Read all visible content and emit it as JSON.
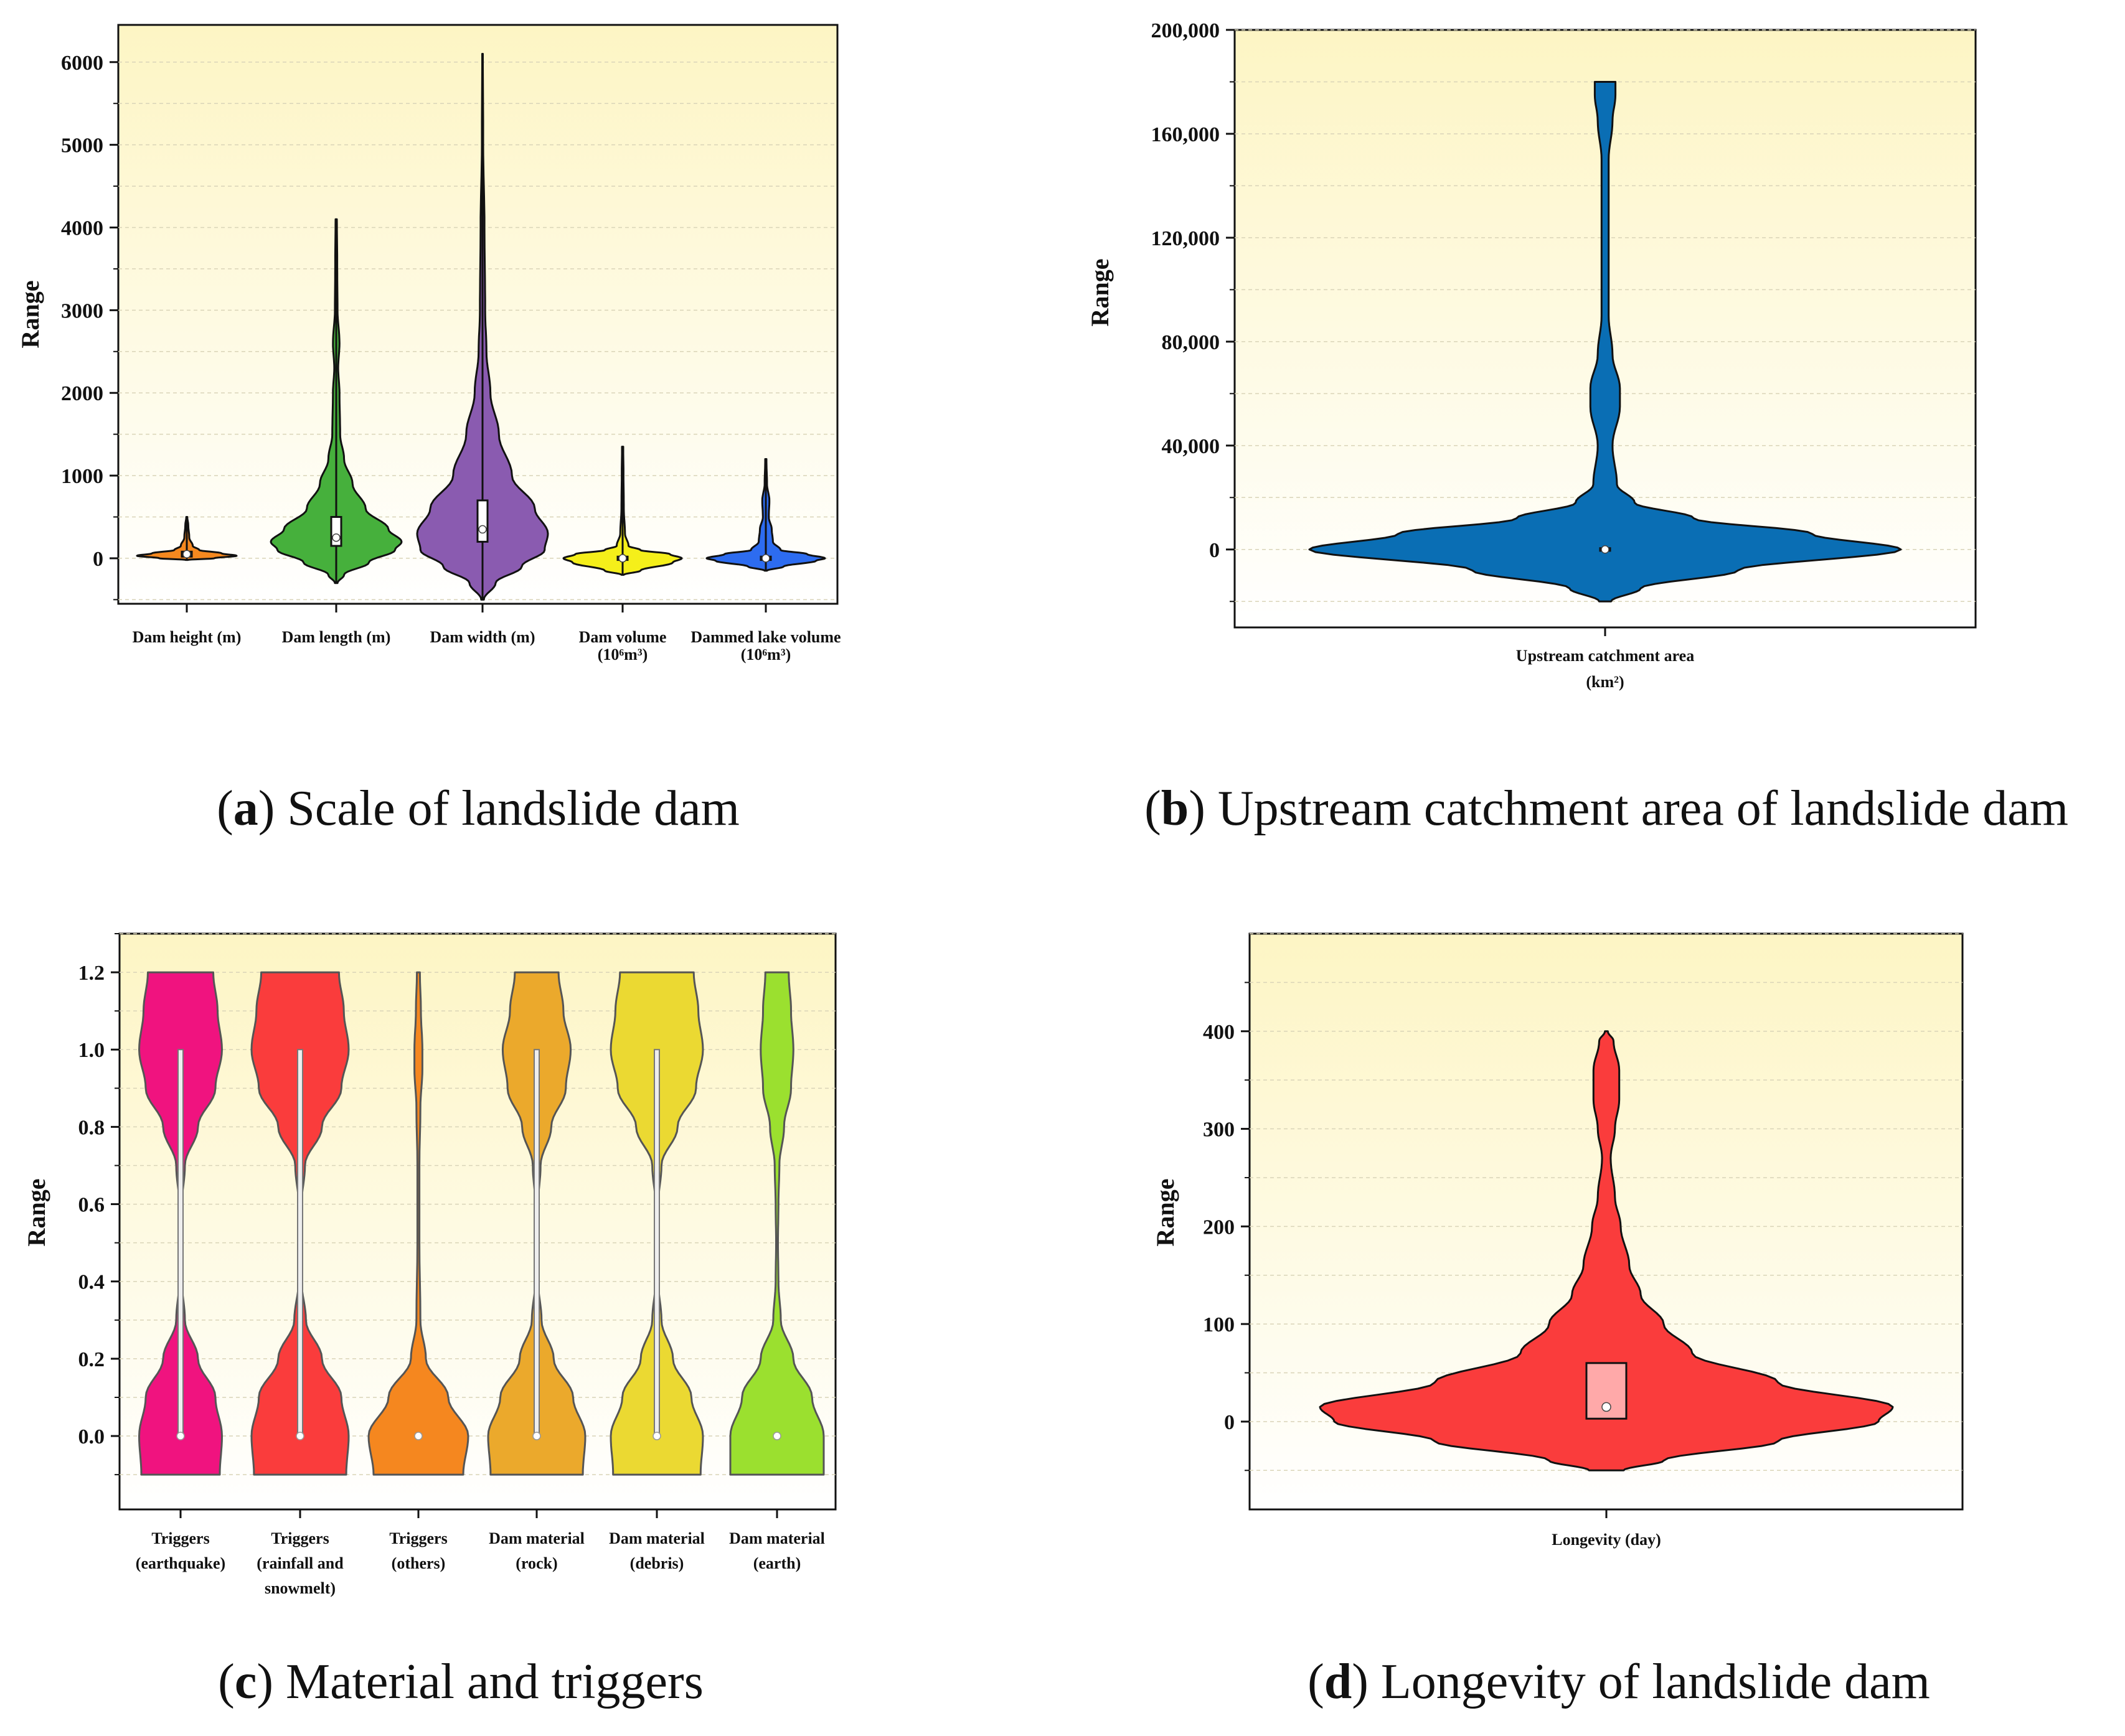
{
  "colors": {
    "bg_top": "#fdf5c4",
    "bg_bottom": "#ffffff",
    "grid": "#d9d4b8",
    "axis": "#111111"
  },
  "chart_data": [
    {
      "id": "a",
      "type": "violin",
      "caption_letter": "a",
      "caption_text": " Scale of landslide dam",
      "ylabel": "Range",
      "ylim": [
        -550,
        6450
      ],
      "yticks": [
        "0",
        "1000",
        "2000",
        "3000",
        "4000",
        "5000",
        "6000"
      ],
      "ytick_values": [
        0,
        1000,
        2000,
        3000,
        4000,
        5000,
        6000
      ],
      "categories": [
        {
          "label": [
            "Dam height (m)"
          ],
          "color": "#f5881f",
          "min": -20,
          "max": 500,
          "median": 50,
          "q1": 20,
          "q3": 80,
          "shape": [
            [
              -20,
              0.02
            ],
            [
              0,
              0.55
            ],
            [
              30,
              1.0
            ],
            [
              60,
              0.7
            ],
            [
              100,
              0.25
            ],
            [
              150,
              0.12
            ],
            [
              250,
              0.05
            ],
            [
              400,
              0.03
            ],
            [
              500,
              0.01
            ]
          ]
        },
        {
          "label": [
            "Dam length (m)"
          ],
          "color": "#46b03c",
          "min": -300,
          "max": 4100,
          "median": 250,
          "q1": 150,
          "q3": 500,
          "shape": [
            [
              -300,
              0.02
            ],
            [
              -200,
              0.12
            ],
            [
              -50,
              0.5
            ],
            [
              100,
              0.9
            ],
            [
              200,
              1.0
            ],
            [
              350,
              0.8
            ],
            [
              600,
              0.45
            ],
            [
              900,
              0.25
            ],
            [
              1200,
              0.12
            ],
            [
              1500,
              0.06
            ],
            [
              2000,
              0.05
            ],
            [
              2300,
              0.03
            ],
            [
              2600,
              0.05
            ],
            [
              3000,
              0.02
            ],
            [
              3600,
              0.015
            ],
            [
              4100,
              0.01
            ]
          ]
        },
        {
          "label": [
            "Dam width (m)"
          ],
          "color": "#8a5bb0",
          "min": -500,
          "max": 6100,
          "median": 350,
          "q1": 200,
          "q3": 700,
          "shape": [
            [
              -500,
              0.02
            ],
            [
              -300,
              0.2
            ],
            [
              -100,
              0.6
            ],
            [
              100,
              0.95
            ],
            [
              300,
              1.0
            ],
            [
              600,
              0.8
            ],
            [
              1000,
              0.45
            ],
            [
              1500,
              0.25
            ],
            [
              2000,
              0.12
            ],
            [
              2500,
              0.06
            ],
            [
              3000,
              0.04
            ],
            [
              4000,
              0.03
            ],
            [
              5000,
              0.01
            ],
            [
              6100,
              0.005
            ]
          ]
        },
        {
          "label": [
            "Dam volume",
            "(10⁶m³)"
          ],
          "color": "#f5ef1a",
          "min": -200,
          "max": 1350,
          "median": 0,
          "q1": -20,
          "q3": 20,
          "shape": [
            [
              -200,
              0.02
            ],
            [
              -150,
              0.3
            ],
            [
              -50,
              0.85
            ],
            [
              0,
              1.0
            ],
            [
              50,
              0.8
            ],
            [
              100,
              0.3
            ],
            [
              150,
              0.1
            ],
            [
              300,
              0.04
            ],
            [
              600,
              0.02
            ],
            [
              1000,
              0.015
            ],
            [
              1350,
              0.01
            ]
          ]
        },
        {
          "label": [
            "Dammed lake volume",
            "(10⁶m³)"
          ],
          "color": "#2d6cf0",
          "min": -150,
          "max": 1200,
          "median": 0,
          "q1": -20,
          "q3": 20,
          "shape": [
            [
              -150,
              0.02
            ],
            [
              -100,
              0.3
            ],
            [
              -30,
              0.85
            ],
            [
              0,
              1.0
            ],
            [
              50,
              0.7
            ],
            [
              100,
              0.25
            ],
            [
              200,
              0.12
            ],
            [
              350,
              0.1
            ],
            [
              500,
              0.05
            ],
            [
              700,
              0.06
            ],
            [
              900,
              0.02
            ],
            [
              1200,
              0.01
            ]
          ]
        }
      ]
    },
    {
      "id": "b",
      "type": "violin",
      "caption_letter": "b",
      "caption_text": " Upstream catchment area of landslide dam",
      "ylabel": "Range",
      "ylim": [
        -30000,
        200000
      ],
      "yticks": [
        "0",
        "40,000",
        "80,000",
        "120,000",
        "160,000",
        "200,000"
      ],
      "ytick_values": [
        0,
        40000,
        80000,
        120000,
        160000,
        200000
      ],
      "categories": [
        {
          "label": [
            "Upstream catchment area",
            "(km²)"
          ],
          "color": "#0a6eb4",
          "min": -20000,
          "max": 180000,
          "median": 0,
          "q1": -500,
          "q3": 500,
          "shape": [
            [
              -20000,
              0.02
            ],
            [
              -15000,
              0.12
            ],
            [
              -8000,
              0.45
            ],
            [
              0,
              1.0
            ],
            [
              6000,
              0.7
            ],
            [
              12000,
              0.3
            ],
            [
              18000,
              0.1
            ],
            [
              25000,
              0.04
            ],
            [
              40000,
              0.025
            ],
            [
              55000,
              0.05
            ],
            [
              62000,
              0.05
            ],
            [
              75000,
              0.025
            ],
            [
              90000,
              0.012
            ],
            [
              150000,
              0.012
            ],
            [
              165000,
              0.025
            ],
            [
              175000,
              0.035
            ],
            [
              180000,
              0.035
            ]
          ]
        }
      ]
    },
    {
      "id": "c",
      "type": "violin",
      "caption_letter": "c",
      "caption_text": " Material and triggers",
      "ylabel": "Range",
      "ylim": [
        -0.19,
        1.3
      ],
      "yticks": [
        "0.0",
        "0.2",
        "0.4",
        "0.6",
        "0.8",
        "1.0",
        "1.2"
      ],
      "ytick_values": [
        0.0,
        0.2,
        0.4,
        0.6,
        0.8,
        1.0,
        1.2
      ],
      "categories": [
        {
          "label": [
            "Triggers",
            "(earthquake)"
          ],
          "color": "#f0137f",
          "min": -0.1,
          "max": 1.2,
          "median": 0.0,
          "q1": 0.0,
          "q3": 1.0,
          "shape": [
            [
              -0.1,
              0.9
            ],
            [
              0.0,
              0.95
            ],
            [
              0.1,
              0.8
            ],
            [
              0.2,
              0.4
            ],
            [
              0.3,
              0.1
            ],
            [
              0.4,
              0.03
            ],
            [
              0.5,
              0.02
            ],
            [
              0.6,
              0.03
            ],
            [
              0.7,
              0.1
            ],
            [
              0.8,
              0.4
            ],
            [
              0.9,
              0.8
            ],
            [
              1.0,
              0.95
            ],
            [
              1.1,
              0.85
            ],
            [
              1.2,
              0.75
            ]
          ]
        },
        {
          "label": [
            "Triggers",
            "(rainfall and",
            "snowmelt)"
          ],
          "color": "#fa3c3c",
          "min": -0.1,
          "max": 1.2,
          "median": 0.0,
          "q1": 0.0,
          "q3": 1.0,
          "shape": [
            [
              -0.1,
              0.95
            ],
            [
              0.0,
              1.0
            ],
            [
              0.1,
              0.85
            ],
            [
              0.2,
              0.45
            ],
            [
              0.3,
              0.12
            ],
            [
              0.4,
              0.03
            ],
            [
              0.5,
              0.02
            ],
            [
              0.6,
              0.03
            ],
            [
              0.7,
              0.1
            ],
            [
              0.8,
              0.45
            ],
            [
              0.9,
              0.85
            ],
            [
              1.0,
              1.0
            ],
            [
              1.1,
              0.9
            ],
            [
              1.2,
              0.8
            ]
          ]
        },
        {
          "label": [
            "Triggers",
            "(others)"
          ],
          "color": "#f5871f",
          "min": -0.1,
          "max": 1.2,
          "median": 0.0,
          "q1": 0.0,
          "q3": 0.0,
          "shape": [
            [
              -0.1,
              0.9
            ],
            [
              0.0,
              1.0
            ],
            [
              0.1,
              0.6
            ],
            [
              0.2,
              0.15
            ],
            [
              0.3,
              0.04
            ],
            [
              0.5,
              0.02
            ],
            [
              0.7,
              0.02
            ],
            [
              0.85,
              0.04
            ],
            [
              0.95,
              0.08
            ],
            [
              1.0,
              0.08
            ],
            [
              1.1,
              0.05
            ],
            [
              1.2,
              0.03
            ]
          ]
        },
        {
          "label": [
            "Dam material",
            "(rock)"
          ],
          "color": "#eba92c",
          "min": -0.1,
          "max": 1.2,
          "median": 0.0,
          "q1": 0.0,
          "q3": 1.0,
          "shape": [
            [
              -0.1,
              0.95
            ],
            [
              0.0,
              1.0
            ],
            [
              0.1,
              0.75
            ],
            [
              0.2,
              0.35
            ],
            [
              0.3,
              0.1
            ],
            [
              0.4,
              0.03
            ],
            [
              0.5,
              0.02
            ],
            [
              0.6,
              0.03
            ],
            [
              0.7,
              0.08
            ],
            [
              0.8,
              0.3
            ],
            [
              0.9,
              0.6
            ],
            [
              1.0,
              0.7
            ],
            [
              1.1,
              0.55
            ],
            [
              1.2,
              0.45
            ]
          ]
        },
        {
          "label": [
            "Dam material",
            "(debris)"
          ],
          "color": "#ebd932",
          "min": -0.1,
          "max": 1.2,
          "median": 0.0,
          "q1": 0.0,
          "q3": 1.0,
          "shape": [
            [
              -0.1,
              0.95
            ],
            [
              0.0,
              1.0
            ],
            [
              0.1,
              0.75
            ],
            [
              0.2,
              0.35
            ],
            [
              0.3,
              0.1
            ],
            [
              0.4,
              0.03
            ],
            [
              0.5,
              0.02
            ],
            [
              0.6,
              0.03
            ],
            [
              0.7,
              0.1
            ],
            [
              0.8,
              0.45
            ],
            [
              0.9,
              0.85
            ],
            [
              1.0,
              1.0
            ],
            [
              1.1,
              0.9
            ],
            [
              1.2,
              0.8
            ]
          ]
        },
        {
          "label": [
            "Dam material",
            "(earth)"
          ],
          "color": "#9be02f",
          "min": -0.1,
          "max": 1.2,
          "median": 0.0,
          "q1": 0.0,
          "q3": 0.0,
          "shape": [
            [
              -0.1,
              1.0
            ],
            [
              0.0,
              1.0
            ],
            [
              0.1,
              0.75
            ],
            [
              0.2,
              0.35
            ],
            [
              0.3,
              0.08
            ],
            [
              0.4,
              0.03
            ],
            [
              0.5,
              0.02
            ],
            [
              0.6,
              0.03
            ],
            [
              0.7,
              0.05
            ],
            [
              0.8,
              0.15
            ],
            [
              0.9,
              0.3
            ],
            [
              1.0,
              0.35
            ],
            [
              1.1,
              0.3
            ],
            [
              1.2,
              0.25
            ]
          ]
        }
      ]
    },
    {
      "id": "d",
      "type": "violin",
      "caption_letter": "d",
      "caption_text": " Longevity of landslide dam",
      "ylabel": "Range",
      "ylim": [
        -90,
        500
      ],
      "yticks": [
        "0",
        "100",
        "200",
        "300",
        "400"
      ],
      "ytick_values": [
        0,
        100,
        200,
        300,
        400
      ],
      "categories": [
        {
          "label": [
            "Longevity  (day)"
          ],
          "color": "#fa3c3c",
          "min": -50,
          "max": 400,
          "median": 15,
          "q1": 3,
          "q3": 60,
          "shape": [
            [
              -50,
              0.06
            ],
            [
              -40,
              0.2
            ],
            [
              -20,
              0.6
            ],
            [
              0,
              0.95
            ],
            [
              15,
              1.0
            ],
            [
              40,
              0.6
            ],
            [
              70,
              0.3
            ],
            [
              100,
              0.2
            ],
            [
              130,
              0.12
            ],
            [
              160,
              0.08
            ],
            [
              200,
              0.05
            ],
            [
              230,
              0.03
            ],
            [
              270,
              0.015
            ],
            [
              300,
              0.03
            ],
            [
              330,
              0.045
            ],
            [
              360,
              0.045
            ],
            [
              390,
              0.025
            ],
            [
              400,
              0.005
            ]
          ]
        }
      ]
    }
  ]
}
